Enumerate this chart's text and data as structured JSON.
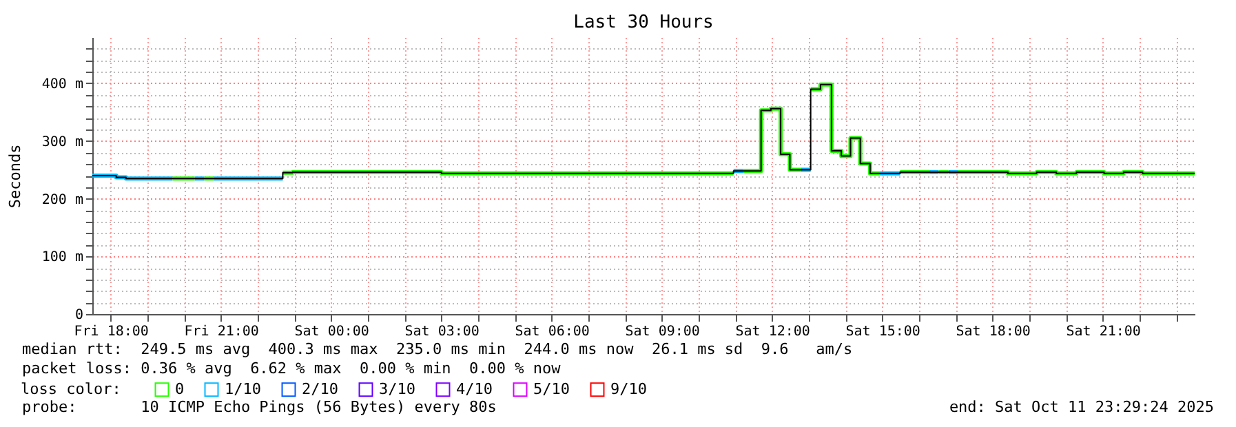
{
  "chart_data": {
    "type": "step",
    "title": "Last 30 Hours",
    "ylabel": "Seconds",
    "legend_title": "loss color:",
    "legend": "bottom",
    "grid": true,
    "xlim": [
      "2025-10-10T17:30",
      "2025-10-11T23:30"
    ],
    "xticks": [
      {
        "value": "2025-10-10T18:00",
        "label": "Fri 18:00"
      },
      {
        "value": "2025-10-10T19:00",
        "label": null
      },
      {
        "value": "2025-10-10T20:00",
        "label": null
      },
      {
        "value": "2025-10-10T21:00",
        "label": "Fri 21:00"
      },
      {
        "value": "2025-10-10T22:00",
        "label": null
      },
      {
        "value": "2025-10-10T23:00",
        "label": null
      },
      {
        "value": "2025-10-11T00:00",
        "label": "Sat 00:00"
      },
      {
        "value": "2025-10-11T01:00",
        "label": null
      },
      {
        "value": "2025-10-11T02:00",
        "label": null
      },
      {
        "value": "2025-10-11T03:00",
        "label": "Sat 03:00"
      },
      {
        "value": "2025-10-11T04:00",
        "label": null
      },
      {
        "value": "2025-10-11T05:00",
        "label": null
      },
      {
        "value": "2025-10-11T06:00",
        "label": "Sat 06:00"
      },
      {
        "value": "2025-10-11T07:00",
        "label": null
      },
      {
        "value": "2025-10-11T08:00",
        "label": null
      },
      {
        "value": "2025-10-11T09:00",
        "label": "Sat 09:00"
      },
      {
        "value": "2025-10-11T10:00",
        "label": null
      },
      {
        "value": "2025-10-11T11:00",
        "label": null
      },
      {
        "value": "2025-10-11T12:00",
        "label": "Sat 12:00"
      },
      {
        "value": "2025-10-11T13:00",
        "label": null
      },
      {
        "value": "2025-10-11T14:00",
        "label": null
      },
      {
        "value": "2025-10-11T15:00",
        "label": "Sat 15:00"
      },
      {
        "value": "2025-10-11T16:00",
        "label": null
      },
      {
        "value": "2025-10-11T17:00",
        "label": null
      },
      {
        "value": "2025-10-11T18:00",
        "label": "Sat 18:00"
      },
      {
        "value": "2025-10-11T19:00",
        "label": null
      },
      {
        "value": "2025-10-11T20:00",
        "label": null
      },
      {
        "value": "2025-10-11T21:00",
        "label": "Sat 21:00"
      },
      {
        "value": "2025-10-11T22:00",
        "label": null
      },
      {
        "value": "2025-10-11T23:00",
        "label": null
      }
    ],
    "ylim": [
      0,
      480
    ],
    "yticks": [
      0,
      {
        "value": 20,
        "label": null
      },
      {
        "value": 40,
        "label": null
      },
      {
        "value": 60,
        "label": null
      },
      {
        "value": 80,
        "label": null
      },
      {
        "value": 100,
        "label": "100 m"
      },
      {
        "value": 120,
        "label": null
      },
      {
        "value": 140,
        "label": null
      },
      {
        "value": 160,
        "label": null
      },
      {
        "value": 180,
        "label": null
      },
      {
        "value": 200,
        "label": "200 m"
      },
      {
        "value": 220,
        "label": null
      },
      {
        "value": 240,
        "label": null
      },
      {
        "value": 260,
        "label": null
      },
      {
        "value": 280,
        "label": null
      },
      {
        "value": 300,
        "label": "300 m"
      },
      {
        "value": 320,
        "label": null
      },
      {
        "value": 340,
        "label": null
      },
      {
        "value": 360,
        "label": null
      },
      {
        "value": 380,
        "label": null
      },
      {
        "value": 400,
        "label": "400 m"
      },
      {
        "value": 420,
        "label": null
      },
      {
        "value": 440,
        "label": null
      },
      {
        "value": 460,
        "label": null
      }
    ],
    "series": [
      {
        "color": "#000000",
        "x": [
          "2025-10-10T17:30",
          "2025-10-10T18:09",
          "2025-10-10T18:25",
          "2025-10-10T22:41",
          "2025-10-10T22:57",
          "2025-10-11T03:00",
          "2025-10-11T10:57",
          "2025-10-11T11:42",
          "2025-10-11T11:58",
          "2025-10-11T12:14",
          "2025-10-11T12:29",
          "2025-10-11T13:03",
          "2025-10-11T13:19",
          "2025-10-11T13:37",
          "2025-10-11T13:53",
          "2025-10-11T14:08",
          "2025-10-11T14:24",
          "2025-10-11T14:40",
          "2025-10-11T15:29",
          "2025-10-11T18:25",
          "2025-10-11T19:12",
          "2025-10-11T19:44",
          "2025-10-11T20:17",
          "2025-10-11T21:02",
          "2025-10-11T21:34",
          "2025-10-11T22:05",
          "2025-10-11T23:30"
        ],
        "values": [
          240,
          237,
          235,
          245,
          246,
          244,
          248,
          353,
          356,
          277,
          250,
          390,
          398,
          283,
          274,
          305,
          261,
          244,
          246,
          244,
          246,
          244,
          246,
          244,
          246,
          244,
          244
        ]
      },
      {
        "name": "0",
        "color": "#26ff00",
        "x": [
          "2025-10-10T19:41",
          "2025-10-10T20:17",
          null,
          "2025-10-10T20:33",
          "2025-10-10T20:49",
          null,
          "2025-10-10T22:41",
          "2025-10-10T22:57",
          "2025-10-11T03:00",
          "2025-10-11T10:57",
          null,
          "2025-10-11T11:13",
          "2025-10-11T11:42",
          "2025-10-11T11:58",
          "2025-10-11T12:14",
          "2025-10-11T12:29",
          "2025-10-11T12:47",
          null,
          "2025-10-11T13:03",
          "2025-10-11T13:19",
          "2025-10-11T13:37",
          "2025-10-11T13:53",
          "2025-10-11T14:08",
          "2025-10-11T14:24",
          "2025-10-11T14:40",
          "2025-10-11T14:56",
          null,
          "2025-10-11T15:29",
          "2025-10-11T16:17",
          null,
          "2025-10-11T16:32",
          "2025-10-11T16:48",
          null,
          "2025-10-11T17:04",
          "2025-10-11T18:25",
          "2025-10-11T19:12",
          "2025-10-11T19:44",
          "2025-10-11T20:17",
          "2025-10-11T21:02",
          "2025-10-11T21:34",
          "2025-10-11T22:05",
          "2025-10-11T23:30"
        ],
        "values": [
          235,
          235,
          null,
          235,
          235,
          null,
          245,
          246,
          244,
          244,
          null,
          248,
          353,
          356,
          277,
          250,
          250,
          null,
          390,
          398,
          283,
          274,
          305,
          261,
          244,
          244,
          null,
          246,
          246,
          null,
          246,
          246,
          null,
          246,
          244,
          246,
          244,
          246,
          244,
          246,
          244,
          244
        ]
      },
      {
        "name": "1/10",
        "color": "#00b8ff",
        "x": [
          "2025-10-10T17:30",
          "2025-10-10T18:09",
          "2025-10-10T18:25",
          "2025-10-10T19:41",
          null,
          "2025-10-10T20:17",
          "2025-10-10T20:33",
          null,
          "2025-10-10T20:49",
          "2025-10-10T22:41",
          null,
          "2025-10-11T10:57",
          "2025-10-11T11:13",
          null,
          "2025-10-11T12:47",
          "2025-10-11T13:03",
          null,
          "2025-10-11T14:56",
          "2025-10-11T15:29",
          null,
          "2025-10-11T16:17",
          "2025-10-11T16:32",
          null,
          "2025-10-11T16:48",
          "2025-10-11T17:04"
        ],
        "values": [
          240,
          237,
          235,
          235,
          null,
          235,
          235,
          null,
          235,
          235,
          null,
          248,
          248,
          null,
          250,
          250,
          null,
          244,
          244,
          null,
          246,
          246,
          null,
          246,
          246
        ]
      },
      {
        "name": "2/10",
        "color": "#0059ff"
      },
      {
        "name": "3/10",
        "color": "#5e00ff"
      },
      {
        "name": "4/10",
        "color": "#7e00ff"
      },
      {
        "name": "5/10",
        "color": "#dd00ff"
      },
      {
        "name": "9/10",
        "color": "#ff0000"
      }
    ],
    "annotations": [
      "median rtt:  249.5 ms avg  400.3 ms max  235.0 ms min  244.0 ms now  26.1 ms sd  9.6   am/s",
      "packet loss: 0.36 % avg  6.62 % max  0.00 % min  0.00 % now",
      "probe:       10 ICMP Echo Pings (56 Bytes) every 80s",
      "end: Sat Oct 11 23:29:24 2025"
    ]
  }
}
